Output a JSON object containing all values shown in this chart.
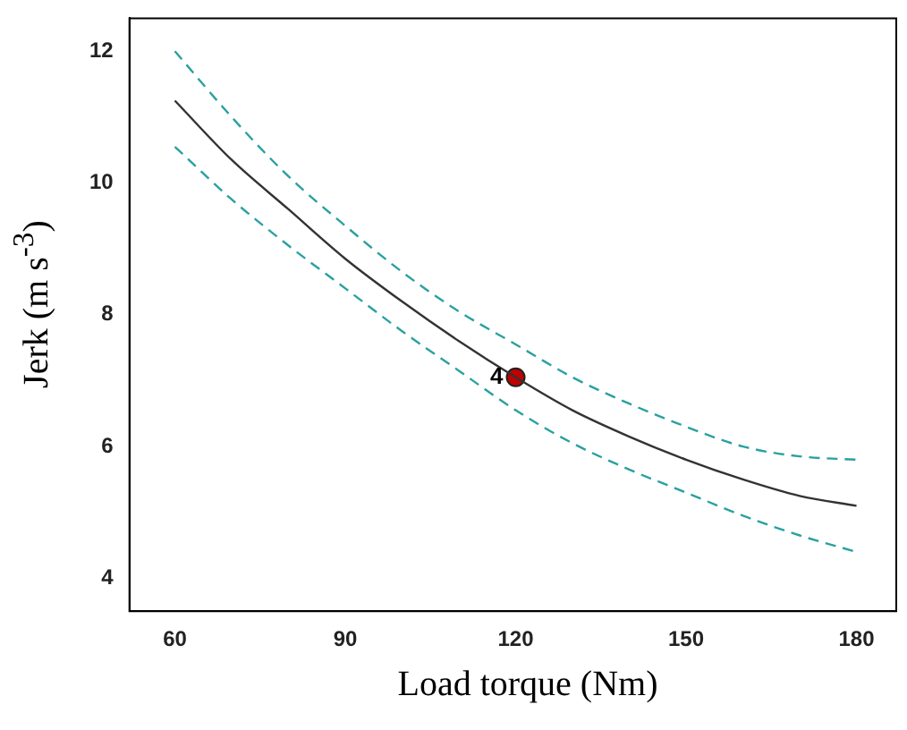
{
  "chart_data": {
    "type": "line",
    "xlabel": "Load torque  (Nm)",
    "ylabel": "Jerk  (m s$^{-3}$)",
    "xlim": [
      52,
      187
    ],
    "xticks": [
      60,
      90,
      120,
      150,
      180
    ],
    "ylim": [
      3.5,
      12.5
    ],
    "yticks": [
      4,
      6,
      8,
      10,
      12
    ],
    "grid": false,
    "legend": false,
    "x": [
      60,
      70,
      80,
      90,
      100,
      110,
      120,
      130,
      140,
      150,
      160,
      170,
      180
    ],
    "series": [
      {
        "color": "#2aa0a0",
        "line_style": "dashed",
        "values": [
          12.0,
          11.0,
          10.1,
          9.35,
          8.65,
          8.05,
          7.55,
          7.05,
          6.65,
          6.3,
          6.0,
          5.85,
          5.8
        ]
      },
      {
        "color": "#333333",
        "values": [
          11.25,
          10.35,
          9.6,
          8.85,
          8.2,
          7.6,
          7.05,
          6.55,
          6.15,
          5.8,
          5.5,
          5.25,
          5.1
        ]
      },
      {
        "color": "#2aa0a0",
        "line_style": "dashed",
        "values": [
          10.55,
          9.75,
          9.05,
          8.4,
          7.75,
          7.15,
          6.55,
          6.05,
          5.65,
          5.3,
          4.95,
          4.65,
          4.4
        ]
      },
      {
        "type": "scatter",
        "color": "#c00000",
        "x": [
          120
        ],
        "values": [
          7.05
        ],
        "marker": "circle"
      }
    ],
    "annotations": [
      {
        "text": "4",
        "x": 120,
        "y": 7.05
      }
    ]
  }
}
